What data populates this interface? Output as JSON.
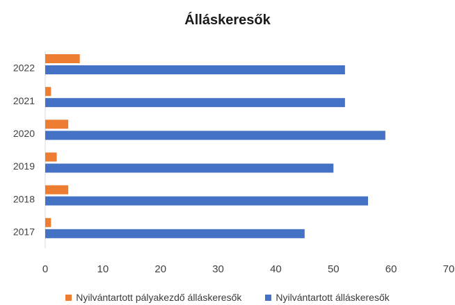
{
  "chart_data": {
    "type": "bar",
    "orientation": "horizontal",
    "title": "Álláskeresők",
    "categories": [
      "2022",
      "2021",
      "2020",
      "2019",
      "2018",
      "2017"
    ],
    "series": [
      {
        "name": "Nyilvántartott pályakezdő álláskeresők",
        "color": "#ED7D31",
        "values": [
          6,
          1,
          4,
          2,
          4,
          1
        ]
      },
      {
        "name": "Nyilvántartott álláskeresők",
        "color": "#4472C4",
        "values": [
          52,
          52,
          59,
          50,
          56,
          45
        ]
      }
    ],
    "xlim": [
      0,
      70
    ],
    "xticks": [
      "0",
      "10",
      "20",
      "30",
      "40",
      "50",
      "60",
      "70"
    ],
    "grid": false,
    "legend_position": "bottom"
  }
}
